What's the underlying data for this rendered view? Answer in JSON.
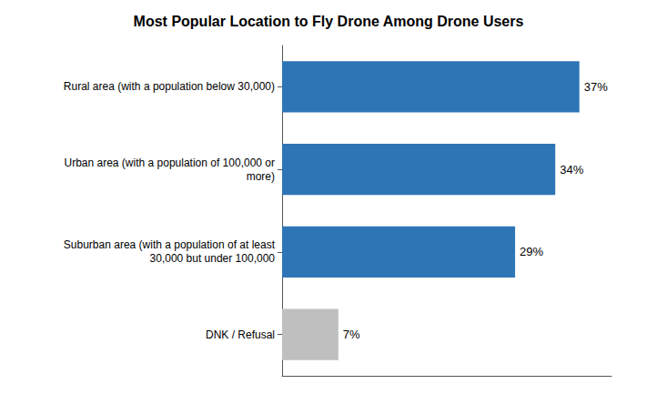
{
  "chart_data": {
    "type": "bar",
    "orientation": "horizontal",
    "title": "Most Popular Location to Fly Drone Among Drone Users",
    "categories": [
      "Rural area (with a population below 30,000)",
      "Urban area (with a population of 100,000 or\nmore)",
      "Suburban area (with a population of at least\n30,000 but under 100,000",
      "DNK / Refusal"
    ],
    "values": [
      37,
      34,
      29,
      7
    ],
    "value_labels": [
      "37%",
      "34%",
      "29%",
      "7%"
    ],
    "colors": [
      "#2E75B6",
      "#2E75B6",
      "#2E75B6",
      "#BFBFBF"
    ],
    "xlim": [
      0,
      41
    ],
    "grid": false,
    "data_labels": true,
    "tick_labels": "y"
  }
}
